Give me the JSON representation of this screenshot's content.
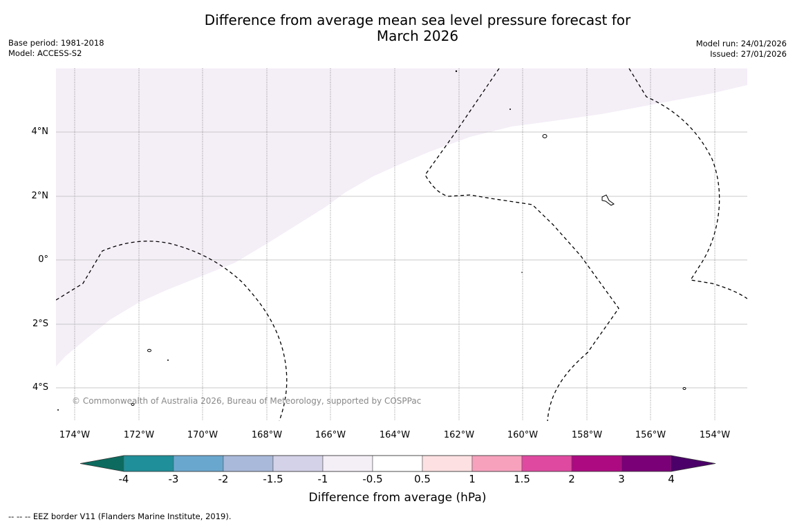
{
  "title_line1": "Difference from average mean sea level pressure forecast for",
  "title_line2": "March 2026",
  "base_period": "Base period: 1981-2018",
  "model": "Model: ACCESS-S2",
  "model_run": "Model run: 24/01/2026",
  "issued": "Issued: 27/01/2026",
  "lat_labels": [
    "4°N",
    "2°N",
    "0°",
    "2°S",
    "4°S"
  ],
  "lon_labels": [
    "174°W",
    "172°W",
    "170°W",
    "168°W",
    "166°W",
    "164°W",
    "162°W",
    "160°W",
    "158°W",
    "156°W",
    "154°W"
  ],
  "copyright": "© Commonwealth of Australia 2026, Bureau of Meteorology, supported by COSPPac",
  "colorbar": {
    "ticks": [
      "-4",
      "-3",
      "-2",
      "-1.5",
      "-1",
      "-0.5",
      "0.5",
      "1",
      "1.5",
      "2",
      "3",
      "4"
    ],
    "colors": [
      "#0c6b5e",
      "#1f8f99",
      "#6aa7cf",
      "#a8b9da",
      "#d3d2e8",
      "#f4eef7",
      "#ffffff",
      "#fde0e2",
      "#f7a1bd",
      "#df4aa0",
      "#ad0a82",
      "#7a0077",
      "#4a0068"
    ],
    "label": "Difference from average (hPa)"
  },
  "footer": "--  --  -- EEZ border V11 (Flanders Marine Institute, 2019).",
  "shading_color": "#f4eef7"
}
